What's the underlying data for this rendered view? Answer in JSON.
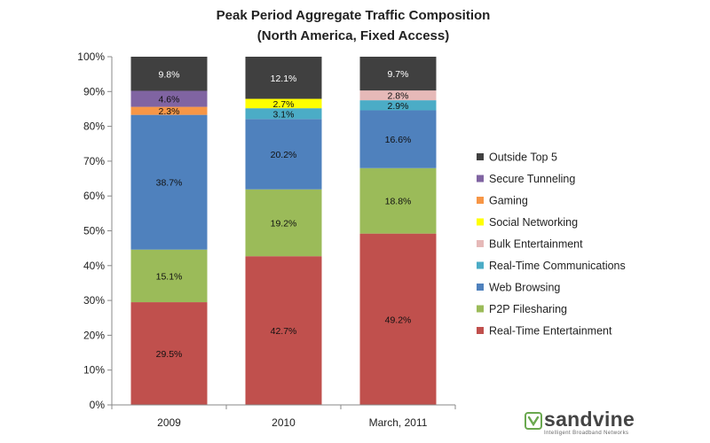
{
  "chart_data": {
    "type": "bar",
    "stacked": true,
    "title": "Peak Period Aggregate Traffic Composition",
    "subtitle": "(North America, Fixed Access)",
    "categories": [
      "2009",
      "2010",
      "March, 2011"
    ],
    "ylim": [
      0,
      100
    ],
    "yticks": [
      "0%",
      "10%",
      "20%",
      "30%",
      "40%",
      "50%",
      "60%",
      "70%",
      "80%",
      "90%",
      "100%"
    ],
    "grid": false,
    "legend_position": "right",
    "series": [
      {
        "name": "Real-Time Entertainment",
        "color": "#c0504d",
        "values": [
          29.5,
          42.7,
          49.2
        ],
        "labels": [
          "29.5%",
          "42.7%",
          "49.2%"
        ]
      },
      {
        "name": "P2P Filesharing",
        "color": "#9bbb59",
        "values": [
          15.1,
          19.2,
          18.8
        ],
        "labels": [
          "15.1%",
          "19.2%",
          "18.8%"
        ]
      },
      {
        "name": "Web Browsing",
        "color": "#4f81bd",
        "values": [
          38.7,
          20.2,
          16.6
        ],
        "labels": [
          "38.7%",
          "20.2%",
          "16.6%"
        ]
      },
      {
        "name": "Real-Time Communications",
        "color": "#4bacc6",
        "values": [
          0,
          3.1,
          2.9
        ],
        "labels": [
          "",
          "3.1%",
          "2.9%"
        ]
      },
      {
        "name": "Bulk Entertainment",
        "color": "#e6b9b8",
        "values": [
          0,
          0,
          2.8
        ],
        "labels": [
          "",
          "",
          "2.8%"
        ]
      },
      {
        "name": "Social Networking",
        "color": "#ffff00",
        "values": [
          0,
          2.7,
          0
        ],
        "labels": [
          "",
          "2.7%",
          ""
        ]
      },
      {
        "name": "Gaming",
        "color": "#f79646",
        "values": [
          2.3,
          0,
          0
        ],
        "labels": [
          "2.3%",
          "",
          ""
        ]
      },
      {
        "name": "Secure Tunneling",
        "color": "#8064a2",
        "values": [
          4.6,
          0,
          0
        ],
        "labels": [
          "4.6%",
          "",
          ""
        ]
      },
      {
        "name": "Outside Top 5",
        "color": "#404040",
        "values": [
          9.8,
          12.1,
          9.7
        ],
        "labels": [
          "9.8%",
          "12.1%",
          "9.7%"
        ]
      }
    ],
    "legend_order": [
      "Outside Top 5",
      "Secure Tunneling",
      "Gaming",
      "Social Networking",
      "Bulk Entertainment",
      "Real-Time Communications",
      "Web Browsing",
      "P2P Filesharing",
      "Real-Time Entertainment"
    ]
  },
  "logo": {
    "name": "sandvine",
    "tagline": "Intelligent Broadband Networks",
    "color": "#6aa84f"
  }
}
